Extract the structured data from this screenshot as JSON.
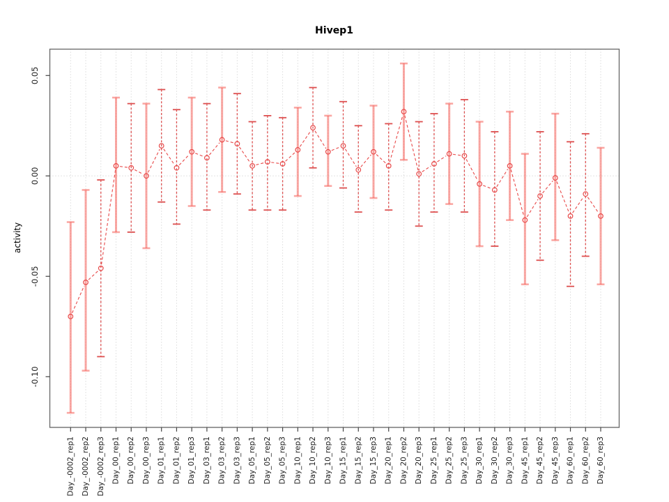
{
  "chart_data": {
    "type": "line",
    "title": "Hivep1",
    "xlabel": "",
    "ylabel": "activity",
    "legend": "none",
    "grid": "dotted vertical line at every category; dotted horizontal line at y=0",
    "marker": "open-circle",
    "error_bars": true,
    "categories": [
      "Day_-0002_rep1",
      "Day_-0002_rep2",
      "Day_-0002_rep3",
      "Day_00_rep1",
      "Day_00_rep2",
      "Day_00_rep3",
      "Day_01_rep1",
      "Day_01_rep2",
      "Day_01_rep3",
      "Day_03_rep1",
      "Day_03_rep2",
      "Day_03_rep3",
      "Day_05_rep1",
      "Day_05_rep2",
      "Day_05_rep3",
      "Day_10_rep1",
      "Day_10_rep2",
      "Day_10_rep3",
      "Day_15_rep1",
      "Day_15_rep2",
      "Day_15_rep3",
      "Day_20_rep1",
      "Day_20_rep2",
      "Day_20_rep3",
      "Day_25_rep1",
      "Day_25_rep2",
      "Day_25_rep3",
      "Day_30_rep1",
      "Day_30_rep2",
      "Day_30_rep3",
      "Day_45_rep1",
      "Day_45_rep2",
      "Day_45_rep3",
      "Day_60_rep1",
      "Day_60_rep2",
      "Day_60_rep3"
    ],
    "values": [
      -0.07,
      -0.053,
      -0.046,
      0.005,
      0.004,
      0.0,
      0.015,
      0.004,
      0.012,
      0.009,
      0.018,
      0.016,
      0.005,
      0.007,
      0.006,
      0.013,
      0.024,
      0.012,
      0.015,
      0.003,
      0.012,
      0.005,
      0.032,
      0.001,
      0.006,
      0.011,
      0.01,
      -0.004,
      -0.007,
      0.005,
      -0.022,
      -0.01,
      -0.001,
      -0.02,
      -0.009,
      -0.02
    ],
    "error_high": [
      -0.023,
      -0.007,
      -0.002,
      0.039,
      0.036,
      0.036,
      0.043,
      0.033,
      0.039,
      0.036,
      0.044,
      0.041,
      0.027,
      0.03,
      0.029,
      0.034,
      0.044,
      0.03,
      0.037,
      0.025,
      0.035,
      0.026,
      0.056,
      0.027,
      0.031,
      0.036,
      0.038,
      0.027,
      0.022,
      0.032,
      0.011,
      0.022,
      0.031,
      0.017,
      0.021,
      0.014
    ],
    "error_low": [
      -0.118,
      -0.097,
      -0.09,
      -0.028,
      -0.028,
      -0.036,
      -0.013,
      -0.024,
      -0.015,
      -0.017,
      -0.008,
      -0.009,
      -0.017,
      -0.017,
      -0.017,
      -0.01,
      0.004,
      -0.005,
      -0.006,
      -0.018,
      -0.011,
      -0.017,
      0.008,
      -0.025,
      -0.018,
      -0.014,
      -0.018,
      -0.035,
      -0.035,
      -0.022,
      -0.054,
      -0.042,
      -0.032,
      -0.055,
      -0.04,
      -0.054
    ],
    "bar_styles": [
      "solid",
      "solid",
      "dashed",
      "solid",
      "dashed",
      "solid",
      "dashed",
      "dashed",
      "solid",
      "dashed",
      "solid",
      "dashed",
      "dashed",
      "dashed",
      "dashed",
      "solid",
      "dashed",
      "solid",
      "dashed",
      "dashed",
      "solid",
      "dashed",
      "solid",
      "dashed",
      "dashed",
      "solid",
      "dashed",
      "solid",
      "dashed",
      "solid",
      "solid",
      "dashed",
      "solid",
      "dashed",
      "dashed",
      "solid"
    ],
    "yticks": [
      0.05,
      0.0,
      -0.05,
      -0.1
    ],
    "ytick_labels": [
      "0.05",
      "0.00",
      "-0.05",
      "-0.10"
    ],
    "ylim": [
      -0.125,
      0.063
    ],
    "colors": {
      "series": "#e84848",
      "bar_solid": "rgba(247,109,101,0.60)",
      "bar_dashed": "#dd4f4f",
      "grid": "#c8c8c8",
      "border": "#6e6e6e",
      "tick": "#444444",
      "tick_text": "#1a1a1a",
      "title_text": "#000000"
    }
  }
}
